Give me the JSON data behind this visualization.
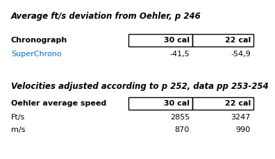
{
  "title1": "Average ft/s deviation from Oehler, p 246",
  "title2": "Velocities adjusted according to p 252, data pp 253-254",
  "header_col1": "30 cal",
  "header_col2": "22 cal",
  "row1_label": "Chronograph",
  "row2_label": "SuperChrono",
  "row2_col1": "-41,5",
  "row2_col2": "-54,9",
  "row3_label": "Oehler average speed",
  "row4_label": "Ft/s",
  "row4_col1": "2855",
  "row4_col2": "3247",
  "row5_label": "m/s",
  "row5_col1": "870",
  "row5_col2": "990",
  "bg_color": "#ffffff",
  "text_color": "#000000",
  "superchrono_color": "#0070c0",
  "title_color": "#000000",
  "box_color": "#000000",
  "font_size": 8.0,
  "title_font_size": 8.5
}
